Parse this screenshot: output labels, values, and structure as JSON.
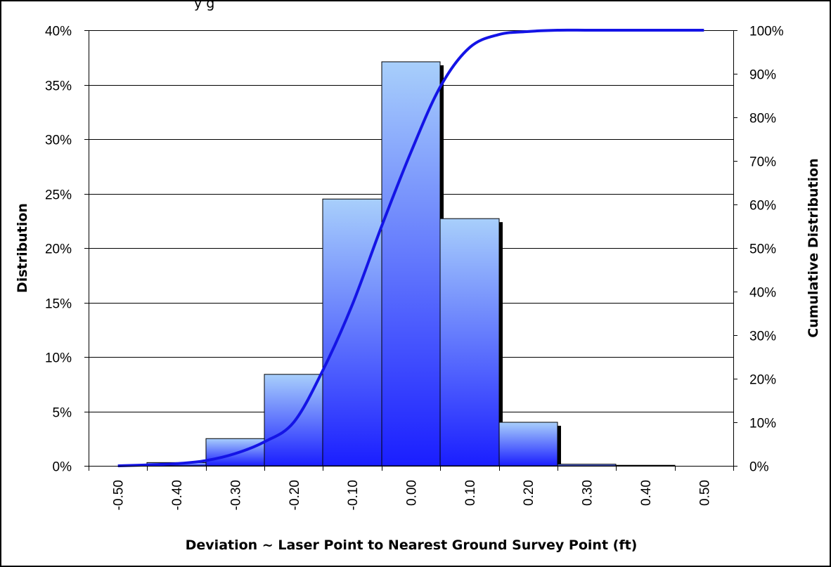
{
  "chart_data": {
    "type": "bar",
    "top_text_fragment": "y   g",
    "xlabel": "Deviation ~ Laser Point to Nearest Ground Survey Point (ft)",
    "ylabel": "Distribution",
    "y2label": "Cumulative Distribution",
    "ylim": [
      0,
      40
    ],
    "y2lim": [
      0,
      100
    ],
    "y_ticks": [
      "0%",
      "5%",
      "10%",
      "15%",
      "20%",
      "25%",
      "30%",
      "35%",
      "40%"
    ],
    "y2_ticks": [
      "0%",
      "10%",
      "20%",
      "30%",
      "40%",
      "50%",
      "60%",
      "70%",
      "80%",
      "90%",
      "100%"
    ],
    "x_tick_labels": [
      "-0.50",
      "-0.40",
      "-0.30",
      "-0.20",
      "-0.10",
      "0.00",
      "0.10",
      "0.20",
      "0.30",
      "0.40",
      "0.50"
    ],
    "categories": [
      "-0.40",
      "-0.30",
      "-0.20",
      "-0.10",
      "0.00",
      "0.10",
      "0.20",
      "0.30",
      "0.40"
    ],
    "series": [
      {
        "values": [
          0.3,
          2.5,
          8.4,
          24.5,
          37.1,
          22.7,
          4.0,
          0.15,
          0.05
        ]
      }
    ],
    "cumulative": {
      "x": [
        -0.5,
        -0.45,
        -0.4,
        -0.35,
        -0.3,
        -0.25,
        -0.2,
        -0.15,
        -0.1,
        -0.05,
        0.0,
        0.05,
        0.1,
        0.15,
        0.2,
        0.25,
        0.3,
        0.35,
        0.4,
        0.45,
        0.5
      ],
      "y": [
        0.0,
        0.2,
        0.5,
        1.2,
        2.8,
        5.5,
        10.0,
        22.0,
        37.0,
        55.0,
        72.0,
        87.0,
        96.0,
        99.0,
        99.7,
        100.0,
        100.0,
        100.0,
        100.0,
        100.0,
        100.0
      ]
    },
    "grid": true,
    "colors": {
      "bar_top": "#a8cffb",
      "bar_bottom": "#1a1eff",
      "bar_shadow": "#000000",
      "line": "#1414e6",
      "grid": "#000000"
    }
  }
}
